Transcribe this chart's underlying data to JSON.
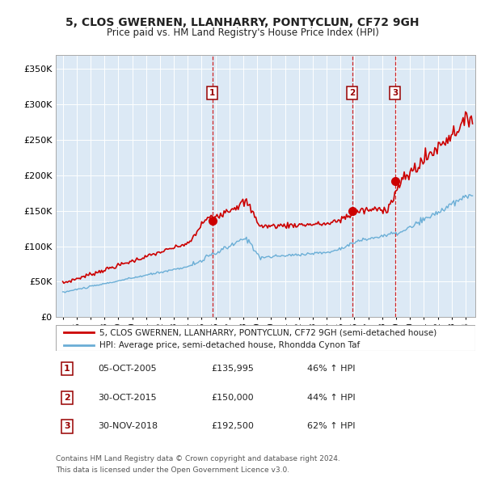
{
  "title": "5, CLOS GWERNEN, LLANHARRY, PONTYCLUN, CF72 9GH",
  "subtitle": "Price paid vs. HM Land Registry's House Price Index (HPI)",
  "plot_bg_color": "#dce9f5",
  "red_line_color": "#cc0000",
  "blue_line_color": "#6aaed6",
  "sales": [
    {
      "date_num": 2005.76,
      "price": 135995,
      "label": "1"
    },
    {
      "date_num": 2015.83,
      "price": 150000,
      "label": "2"
    },
    {
      "date_num": 2018.92,
      "price": 192500,
      "label": "3"
    }
  ],
  "legend_red": "5, CLOS GWERNEN, LLANHARRY, PONTYCLUN, CF72 9GH (semi-detached house)",
  "legend_blue": "HPI: Average price, semi-detached house, Rhondda Cynon Taf",
  "footer1": "Contains HM Land Registry data © Crown copyright and database right 2024.",
  "footer2": "This data is licensed under the Open Government Licence v3.0.",
  "ylim": [
    0,
    370000
  ],
  "yticks": [
    0,
    50000,
    100000,
    150000,
    200000,
    250000,
    300000,
    350000
  ],
  "ytick_labels": [
    "£0",
    "£50K",
    "£100K",
    "£150K",
    "£200K",
    "£250K",
    "£300K",
    "£350K"
  ],
  "xlim_start": 1994.5,
  "xlim_end": 2024.7,
  "xticks": [
    1995,
    1996,
    1997,
    1998,
    1999,
    2000,
    2001,
    2002,
    2003,
    2004,
    2005,
    2006,
    2007,
    2008,
    2009,
    2010,
    2011,
    2012,
    2013,
    2014,
    2015,
    2016,
    2017,
    2018,
    2019,
    2020,
    2021,
    2022,
    2023,
    2024
  ],
  "table_rows": [
    [
      "1",
      "05-OCT-2005",
      "£135,995",
      "46% ↑ HPI"
    ],
    [
      "2",
      "30-OCT-2015",
      "£150,000",
      "44% ↑ HPI"
    ],
    [
      "3",
      "30-NOV-2018",
      "£192,500",
      "62% ↑ HPI"
    ]
  ]
}
